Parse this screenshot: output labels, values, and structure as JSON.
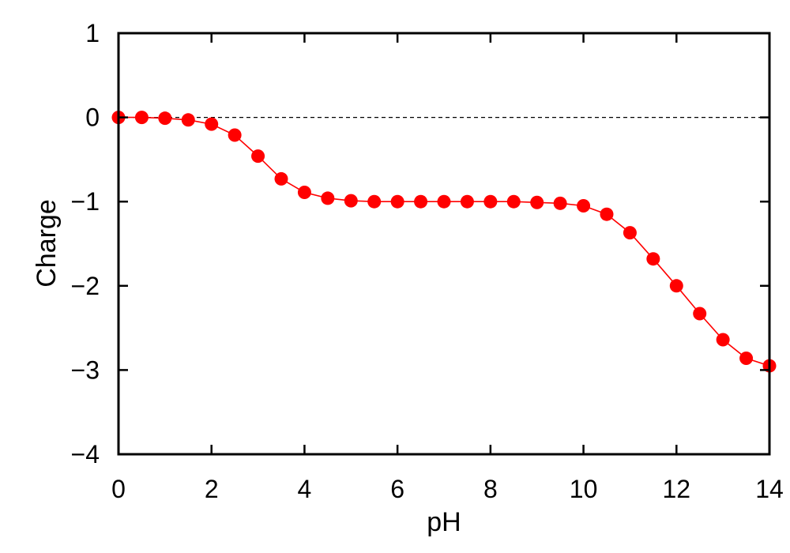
{
  "chart_data": {
    "type": "line",
    "title": "",
    "xlabel": "pH",
    "ylabel": "Charge",
    "xlim": [
      0,
      14
    ],
    "ylim": [
      -4,
      1
    ],
    "x_ticks": [
      0,
      2,
      4,
      6,
      8,
      10,
      12,
      14
    ],
    "y_ticks": [
      1,
      0,
      -1,
      -2,
      -3,
      -4
    ],
    "x_tick_labels": [
      "0",
      "2",
      "4",
      "6",
      "8",
      "10",
      "12",
      "14"
    ],
    "y_tick_labels": [
      "1",
      "0",
      "−1",
      "−2",
      "−3",
      "−4"
    ],
    "reference_lines": [
      {
        "axis": "y",
        "value": 0,
        "style": "dashed",
        "color": "#000000"
      }
    ],
    "grid": false,
    "legend": "none",
    "series": [
      {
        "color": "#ff0000",
        "marker": "filled-circle",
        "x": [
          0,
          0.5,
          1,
          1.5,
          2,
          2.5,
          3,
          3.5,
          4,
          4.5,
          5,
          5.5,
          6,
          6.5,
          7,
          7.5,
          8,
          8.5,
          9,
          9.5,
          10,
          10.5,
          11,
          11.5,
          12,
          12.5,
          13,
          13.5,
          14
        ],
        "y": [
          0.0,
          0.0,
          -0.01,
          -0.03,
          -0.08,
          -0.21,
          -0.46,
          -0.73,
          -0.89,
          -0.96,
          -0.99,
          -1.0,
          -1.0,
          -1.0,
          -1.0,
          -1.0,
          -1.0,
          -1.0,
          -1.01,
          -1.02,
          -1.05,
          -1.15,
          -1.37,
          -1.68,
          -2.0,
          -2.33,
          -2.64,
          -2.86,
          -2.95
        ]
      }
    ]
  }
}
